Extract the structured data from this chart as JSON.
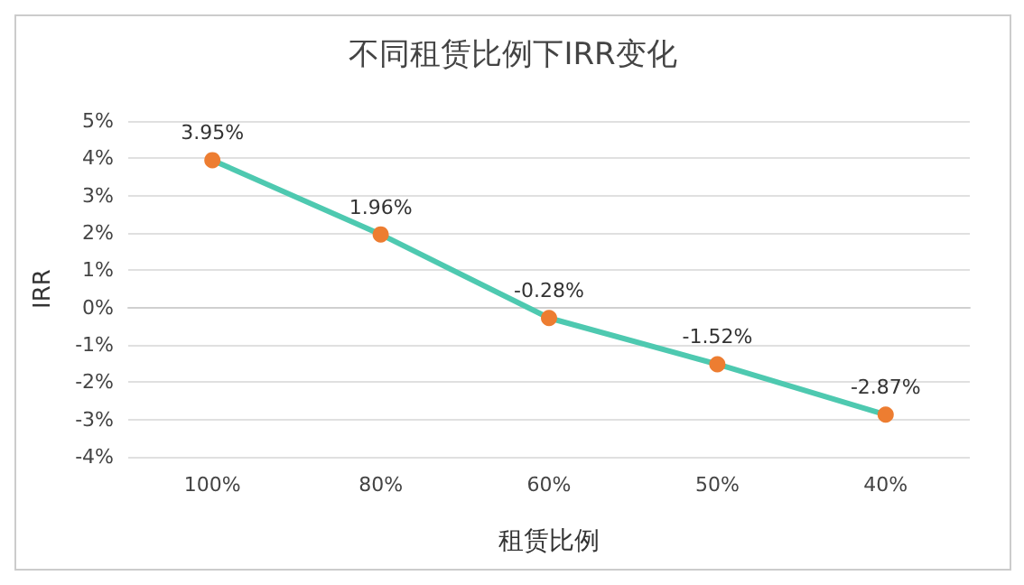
{
  "chart_data": {
    "type": "line",
    "title": "不同租赁比例下IRR变化",
    "xlabel": "租赁比例",
    "ylabel": "IRR",
    "categories": [
      "100%",
      "80%",
      "60%",
      "50%",
      "40%"
    ],
    "series": [
      {
        "color": "#4ec9b0",
        "colors": [
          "#ed7d31",
          "#ed7d31",
          "#ed7d31",
          "#ed7d31",
          "#ed7d31"
        ],
        "values": [
          3.95,
          1.96,
          -0.28,
          -1.52,
          -2.87
        ],
        "value_labels": [
          "3.95%",
          "1.96%",
          "-0.28%",
          "-1.52%",
          "-2.87%"
        ]
      }
    ],
    "ylim": [
      -4,
      5
    ],
    "yticks": [
      {
        "value": -4,
        "label": "-4%"
      },
      {
        "value": -3,
        "label": "-3%"
      },
      {
        "value": -2,
        "label": "-2%"
      },
      {
        "value": -1,
        "label": "-1%"
      },
      {
        "value": 0,
        "label": "0%"
      },
      {
        "value": 1,
        "label": "1%"
      },
      {
        "value": 2,
        "label": "2%"
      },
      {
        "value": 3,
        "label": "3%"
      },
      {
        "value": 4,
        "label": "4%"
      },
      {
        "value": 5,
        "label": "5%"
      }
    ],
    "grid": "y",
    "marker": "circle",
    "line_style": "solid"
  }
}
